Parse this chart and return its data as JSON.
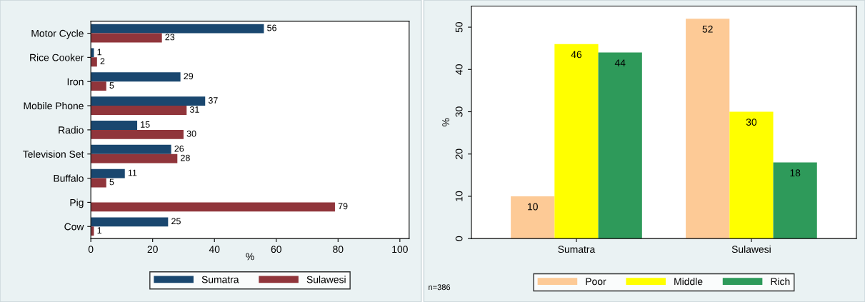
{
  "chart_data": [
    {
      "type": "bar",
      "orientation": "horizontal",
      "categories": [
        "Motor Cycle",
        "Rice Cooker",
        "Iron",
        "Mobile Phone",
        "Radio",
        "Television Set",
        "Buffalo",
        "Pig",
        "Cow"
      ],
      "xlabel": "%",
      "xlim": [
        0,
        103
      ],
      "xticks": [
        0,
        20,
        40,
        60,
        80,
        100
      ],
      "grid": false,
      "legend": "bottom",
      "data_labels": true,
      "series": [
        {
          "name": "Sumatra",
          "color": "#1a476f",
          "values": [
            56,
            1,
            29,
            37,
            15,
            26,
            11,
            null,
            25
          ]
        },
        {
          "name": "Sulawesi",
          "color": "#90353b",
          "values": [
            23,
            2,
            5,
            31,
            30,
            28,
            5,
            79,
            1
          ]
        }
      ]
    },
    {
      "type": "bar",
      "categories": [
        "Sumatra",
        "Sulawesi"
      ],
      "ylabel": "%",
      "ylim": [
        0,
        55
      ],
      "yticks": [
        0,
        10,
        20,
        30,
        40,
        50
      ],
      "grid": false,
      "legend": "bottom",
      "data_labels": true,
      "annotations": [
        "n=386"
      ],
      "series": [
        {
          "name": "Poor",
          "color": "#fdca96",
          "values": [
            10,
            52
          ]
        },
        {
          "name": "Middle",
          "color": "#ffff00",
          "values": [
            46,
            30
          ]
        },
        {
          "name": "Rich",
          "color": "#2e9a5a",
          "values": [
            44,
            18
          ]
        }
      ]
    }
  ]
}
